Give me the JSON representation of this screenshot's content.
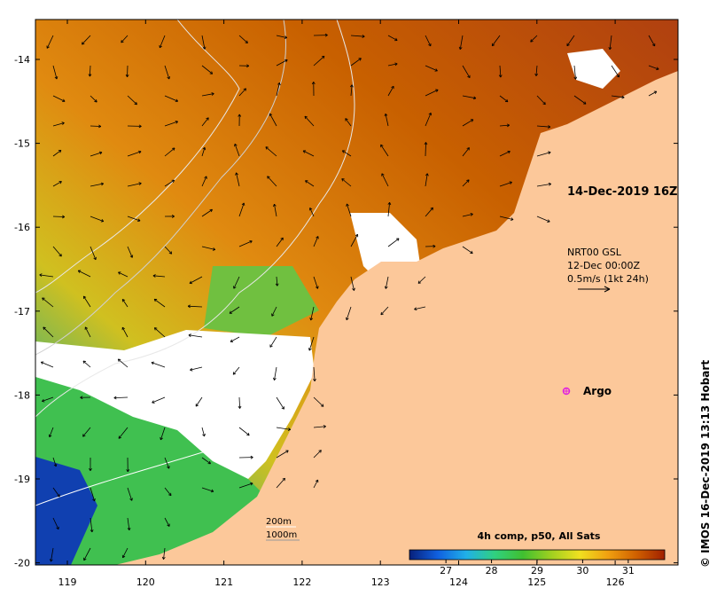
{
  "map": {
    "date_label": "14-Dec-2019 16Z",
    "current_info": {
      "line1": "NRT00 GSL",
      "line2": "12-Dec 00:00Z",
      "line3": "0.5m/s (1kt 24h)"
    },
    "argo_label": "Argo",
    "contour_legend": {
      "line1": "200m",
      "line2": "1000m"
    },
    "colorbar": {
      "title": "4h comp, p50, All Sats",
      "min": 26.2,
      "max": 31.8,
      "ticks": [
        "27",
        "28",
        "29",
        "30",
        "31"
      ],
      "tick_values": [
        27,
        28,
        29,
        30,
        31
      ],
      "stops": [
        "#08207a",
        "#1060e0",
        "#20b0e8",
        "#30d080",
        "#40c030",
        "#a0d020",
        "#f0e020",
        "#f0a010",
        "#d06000",
        "#a02000"
      ]
    },
    "copyright": "© IMOS 16-Dec-2019 13:13 Hobart",
    "lon_ticks": [
      "119",
      "120",
      "121",
      "122",
      "123",
      "124",
      "125",
      "126"
    ],
    "lon_values": [
      119,
      120,
      121,
      122,
      123,
      124,
      125,
      126
    ],
    "lat_ticks": [
      "-14",
      "-15",
      "-16",
      "-17",
      "-18",
      "-19",
      "-20"
    ],
    "lat_values": [
      -14,
      -15,
      -16,
      -17,
      -18,
      -19,
      -20
    ],
    "colors": {
      "land": "#fcc89a",
      "no_data": "#ffffff",
      "argo": "#e020e0"
    }
  }
}
